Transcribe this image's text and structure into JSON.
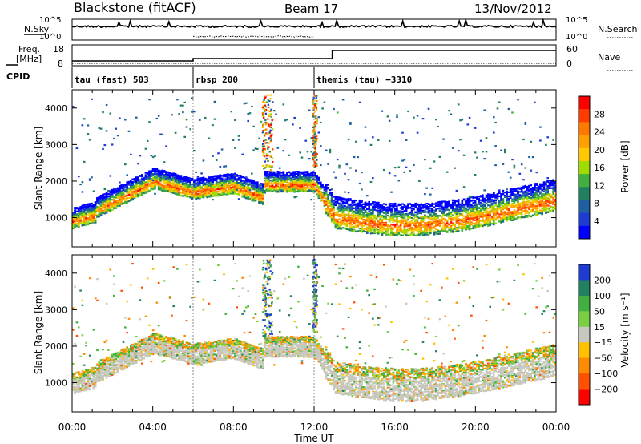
{
  "header": {
    "title": "Blackstone (fitACF)",
    "beam": "Beam 17",
    "date": "13/Nov/2012"
  },
  "top_panels": {
    "nsky_label": "N.Sky",
    "nsearch_label": "N.Search",
    "nsky_ticks": [
      "10^5",
      "10^0"
    ],
    "nsearch_ticks": [
      "10^5",
      "10^0"
    ],
    "freq_label": "Freq.",
    "freq_unit": "[MHz]",
    "freq_ticks": [
      "18",
      "8"
    ],
    "nave_label": "Nave",
    "nave_ticks": [
      "60",
      "0"
    ],
    "cpid_label": "CPID"
  },
  "cpid_segments": [
    {
      "label": "tau (fast) 503",
      "start_h": 0,
      "end_h": 6
    },
    {
      "label": "rbsp 200",
      "start_h": 6,
      "end_h": 12
    },
    {
      "label": "themis (tau) −3310",
      "start_h": 12,
      "end_h": 24
    }
  ],
  "colorbars": {
    "power": {
      "label": "Power [dB]",
      "ticks": [
        "28",
        "24",
        "20",
        "16",
        "12",
        "8",
        "4"
      ],
      "colors": [
        "#ff0000",
        "#ff3c00",
        "#ff7800",
        "#ffa000",
        "#ffc800",
        "#a0dc00",
        "#40b040",
        "#208060",
        "#2060a0",
        "#1e3cd2",
        "#0000ff"
      ]
    },
    "velocity": {
      "label": "Velocity [m s⁻¹]",
      "ticks": [
        "200",
        "100",
        "50",
        "15",
        "−15",
        "−50",
        "−100",
        "−200"
      ],
      "colors": [
        "#1e3cd2",
        "#208060",
        "#40b040",
        "#78d040",
        "#c8c8c0",
        "#ffc000",
        "#ff8c00",
        "#ff5000",
        "#ff0000"
      ]
    }
  },
  "axes": {
    "ylabel": "Slant Range [km]",
    "xlabel": "Time UT"
  },
  "chart_data": [
    {
      "type": "heatmap",
      "name": "power",
      "x_ticks": [
        "00:00",
        "04:00",
        "08:00",
        "12:00",
        "16:00",
        "20:00",
        "00:00"
      ],
      "xlim": [
        0,
        24
      ],
      "y_ticks": [
        "1000",
        "2000",
        "3000",
        "4000"
      ],
      "ylim": [
        200,
        4500
      ],
      "colorbar_range": [
        0,
        30
      ]
    },
    {
      "type": "heatmap",
      "name": "velocity",
      "x_ticks": [
        "00:00",
        "04:00",
        "08:00",
        "12:00",
        "16:00",
        "20:00",
        "00:00"
      ],
      "xlim": [
        0,
        24
      ],
      "y_ticks": [
        "1000",
        "2000",
        "3000",
        "4000"
      ],
      "ylim": [
        200,
        4500
      ],
      "colorbar_range": [
        -250,
        250
      ]
    }
  ]
}
